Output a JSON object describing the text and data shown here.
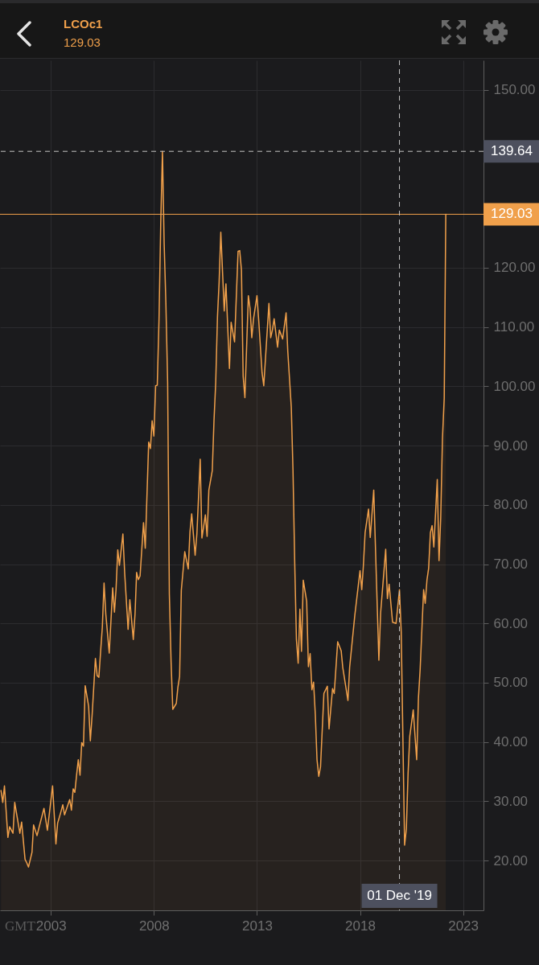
{
  "chart_data": {
    "type": "area",
    "title": "LCOc1",
    "subtitle": "129.03",
    "color": "#f0a04b",
    "x": [
      "2000-08",
      "2000-09",
      "2000-10",
      "2000-12",
      "2001-01",
      "2001-03",
      "2001-04",
      "2001-07",
      "2001-08",
      "2001-10",
      "2001-11",
      "2001-12",
      "2002-02",
      "2002-03",
      "2002-05",
      "2002-06",
      "2002-09",
      "2002-11",
      "2003-02",
      "2003-04",
      "2003-05",
      "2003-07",
      "2003-08",
      "2003-09",
      "2003-12",
      "2004-01",
      "2004-02",
      "2004-03",
      "2004-04",
      "2004-05",
      "2004-06",
      "2004-07",
      "2004-08",
      "2004-09",
      "2004-11",
      "2004-12",
      "2005-01",
      "2005-03",
      "2005-04",
      "2005-05",
      "2005-06",
      "2005-07",
      "2005-08",
      "2005-09",
      "2005-11",
      "2006-01",
      "2006-02",
      "2006-03",
      "2006-04",
      "2006-05",
      "2006-07",
      "2006-08",
      "2006-10",
      "2006-11",
      "2007-01",
      "2007-02",
      "2007-03",
      "2007-04",
      "2007-05",
      "2007-07",
      "2007-08",
      "2007-10",
      "2007-11",
      "2007-12",
      "2008-01",
      "2008-02",
      "2008-03",
      "2008-04",
      "2008-05",
      "2008-06",
      "2008-07",
      "2008-08",
      "2008-09",
      "2008-10",
      "2008-11",
      "2008-12",
      "2009-02",
      "2009-03",
      "2009-04",
      "2009-05",
      "2009-07",
      "2009-09",
      "2009-10",
      "2009-11",
      "2010-01",
      "2010-02",
      "2010-04",
      "2010-05",
      "2010-07",
      "2010-08",
      "2010-09",
      "2010-11",
      "2010-12",
      "2011-01",
      "2011-02",
      "2011-03",
      "2011-04",
      "2011-06",
      "2011-07",
      "2011-09",
      "2011-10",
      "2011-12",
      "2012-02",
      "2012-03",
      "2012-04",
      "2012-05",
      "2012-06",
      "2012-08",
      "2012-09",
      "2012-10",
      "2012-11",
      "2013-01",
      "2013-02",
      "2013-04",
      "2013-05",
      "2013-08",
      "2013-09",
      "2013-10",
      "2013-11",
      "2014-01",
      "2014-02",
      "2014-04",
      "2014-06",
      "2014-07",
      "2014-09",
      "2014-10",
      "2014-11",
      "2014-12",
      "2015-01",
      "2015-02",
      "2015-03",
      "2015-04",
      "2015-06",
      "2015-07",
      "2015-08",
      "2015-09",
      "2015-10",
      "2015-11",
      "2015-12",
      "2016-01",
      "2016-02",
      "2016-04",
      "2016-06",
      "2016-07",
      "2016-09",
      "2016-10",
      "2016-12",
      "2017-02",
      "2017-03",
      "2017-06",
      "2017-07",
      "2017-10",
      "2018-01",
      "2018-02",
      "2018-03",
      "2018-04",
      "2018-06",
      "2018-07",
      "2018-09",
      "2018-12",
      "2019-01",
      "2019-04",
      "2019-05",
      "2019-06",
      "2019-08",
      "2019-10",
      "2019-12",
      "2020-01",
      "2020-03",
      "2020-04",
      "2020-05",
      "2020-06",
      "2020-08",
      "2020-10",
      "2020-11",
      "2020-12",
      "2021-02",
      "2021-03",
      "2021-04",
      "2021-05",
      "2021-06",
      "2021-07",
      "2021-08",
      "2021-10",
      "2021-11",
      "2021-12",
      "2022-01",
      "2022-02",
      "2022-03"
    ],
    "values": [
      31.8,
      29.8,
      32.6,
      23.9,
      25.7,
      24.6,
      29.8,
      24.6,
      26.5,
      20.2,
      19.6,
      18.9,
      21.4,
      26.0,
      24.2,
      25.4,
      28.8,
      25.1,
      32.6,
      22.8,
      26.3,
      28.3,
      29.4,
      27.7,
      30.3,
      28.5,
      32.1,
      31.5,
      34.4,
      37.0,
      34.4,
      39.9,
      39.3,
      49.5,
      46.0,
      40.2,
      44.5,
      54.1,
      51.2,
      50.9,
      55.3,
      59.3,
      66.8,
      61.6,
      55.0,
      66.0,
      61.9,
      65.7,
      72.4,
      69.8,
      75.1,
      68.6,
      59.0,
      64.0,
      57.3,
      61.6,
      68.6,
      67.4,
      68.0,
      77.0,
      72.7,
      90.6,
      89.5,
      94.2,
      91.6,
      100.1,
      100.2,
      111.4,
      127.4,
      139.64,
      124.1,
      114.0,
      100.6,
      65.0,
      53.5,
      45.5,
      46.5,
      49.2,
      51.1,
      65.6,
      72.1,
      69.2,
      75.4,
      78.5,
      71.5,
      75.1,
      87.7,
      74.4,
      78.3,
      74.7,
      82.5,
      85.8,
      94.2,
      100.7,
      111.8,
      117.4,
      126.0,
      112.7,
      117.3,
      103.0,
      110.8,
      107.5,
      122.8,
      122.9,
      119.6,
      101.7,
      98.1,
      115.3,
      113.1,
      108.2,
      111.4,
      115.3,
      111.1,
      102.3,
      100.1,
      114.0,
      108.2,
      109.5,
      111.4,
      106.6,
      109.5,
      108.0,
      112.4,
      105.9,
      96.5,
      85.9,
      70.2,
      57.3,
      53.3,
      62.4,
      55.3,
      67.3,
      63.7,
      52.7,
      54.9,
      48.8,
      50.1,
      44.6,
      37.0,
      34.2,
      35.8,
      48.2,
      49.4,
      42.2,
      49.0,
      48.2,
      56.9,
      55.4,
      52.6,
      47.0,
      52.6,
      61.4,
      68.9,
      65.7,
      69.7,
      75.3,
      79.3,
      74.5,
      82.5,
      53.8,
      61.8,
      72.5,
      64.2,
      66.6,
      60.2,
      60.0,
      65.7,
      58.6,
      22.6,
      25.3,
      34.6,
      41.0,
      45.4,
      37.0,
      47.4,
      52.2,
      65.7,
      63.4,
      67.3,
      69.3,
      75.3,
      76.5,
      72.9,
      84.3,
      70.6,
      77.8,
      91.2,
      98.0,
      129.03
    ],
    "xlim": [
      "2000-07-14",
      "2023-12-29"
    ],
    "xticks": [
      "2003",
      "2008",
      "2013",
      "2018",
      "2023"
    ],
    "ylim": [
      11.6,
      155
    ],
    "yticks": [
      {
        "value": 150,
        "label": "150.00"
      },
      {
        "value": 120,
        "label": "120.00"
      },
      {
        "value": 110,
        "label": "110.00"
      },
      {
        "value": 100,
        "label": "100.00"
      },
      {
        "value": 90,
        "label": "90.00"
      },
      {
        "value": 80,
        "label": "80.00"
      },
      {
        "value": 70,
        "label": "70.00"
      },
      {
        "value": 60,
        "label": "60.00"
      },
      {
        "value": 50,
        "label": "50.00"
      },
      {
        "value": 40,
        "label": "40.00"
      },
      {
        "value": 30,
        "label": "30.00"
      },
      {
        "value": 20,
        "label": "20.00"
      }
    ],
    "grid": true,
    "ref_lines": [
      {
        "axis": "y",
        "value": 139.64,
        "label": "139.64",
        "color": "#c4c4c4",
        "line_style": "dashed"
      },
      {
        "axis": "y",
        "value": 129.03,
        "label": "129.03",
        "color": "#f0a04b",
        "line_style": "solid"
      },
      {
        "axis": "x",
        "value": "2019-12-01",
        "label": "01 Dec '19",
        "color": "#c4c4c4",
        "line_style": "dashed"
      }
    ],
    "annotations": [
      "GMT"
    ]
  }
}
